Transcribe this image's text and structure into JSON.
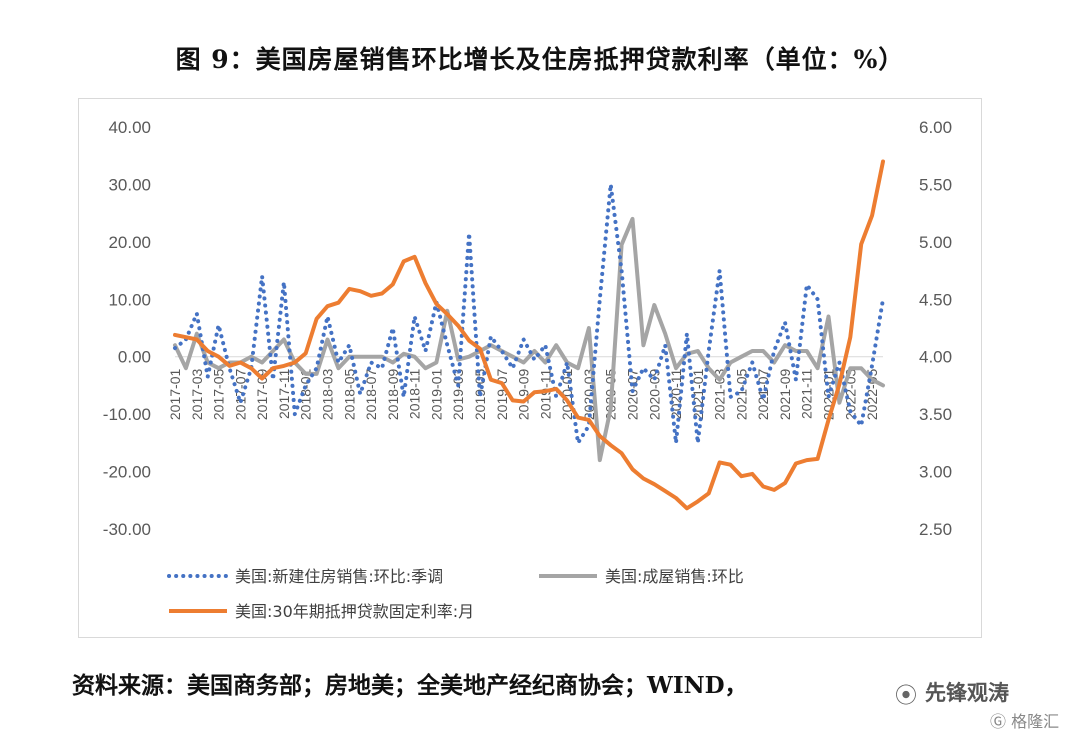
{
  "title": "图 9：美国房屋销售环比增长及住房抵押贷款利率（单位：%）",
  "source": "资料来源：美国商务部；房地美；全美地产经纪商协会；WIND，",
  "watermark": {
    "main": "先锋观涛",
    "secondary": "格隆汇",
    "icon": "wechat-icon",
    "secondary_icon": "gelonghui-logo-icon"
  },
  "chart_data": {
    "type": "line",
    "title": "",
    "xlabel": "",
    "ylabel": "",
    "ylim": [
      -30,
      40
    ],
    "y2lim": [
      2.5,
      6.0
    ],
    "y_ticks": [
      "40.00",
      "30.00",
      "20.00",
      "10.00",
      "0.00",
      "-10.00",
      "-20.00",
      "-30.00"
    ],
    "y2_ticks": [
      "6.00",
      "5.50",
      "5.00",
      "4.50",
      "4.00",
      "3.50",
      "3.00",
      "2.50"
    ],
    "x_tick_labels": [
      "2017-01",
      "2017-03",
      "2017-05",
      "2017-07",
      "2017-09",
      "2017-11",
      "2018-01",
      "2018-03",
      "2018-05",
      "2018-07",
      "2018-09",
      "2018-11",
      "2019-01",
      "2019-03",
      "2019-05",
      "2019-07",
      "2019-09",
      "2019-11",
      "2020-01",
      "2020-03",
      "2020-05",
      "2020-07",
      "2020-09",
      "2020-11",
      "2021-01",
      "2021-03",
      "2021-05",
      "2021-07",
      "2021-09",
      "2021-11",
      "2022-01",
      "2022-03",
      "2022-05"
    ],
    "x": [
      "2017-01",
      "2017-02",
      "2017-03",
      "2017-04",
      "2017-05",
      "2017-06",
      "2017-07",
      "2017-08",
      "2017-09",
      "2017-10",
      "2017-11",
      "2017-12",
      "2018-01",
      "2018-02",
      "2018-03",
      "2018-04",
      "2018-05",
      "2018-06",
      "2018-07",
      "2018-08",
      "2018-09",
      "2018-10",
      "2018-11",
      "2018-12",
      "2019-01",
      "2019-02",
      "2019-03",
      "2019-04",
      "2019-05",
      "2019-06",
      "2019-07",
      "2019-08",
      "2019-09",
      "2019-10",
      "2019-11",
      "2019-12",
      "2020-01",
      "2020-02",
      "2020-03",
      "2020-04",
      "2020-05",
      "2020-06",
      "2020-07",
      "2020-08",
      "2020-09",
      "2020-10",
      "2020-11",
      "2020-12",
      "2021-01",
      "2021-02",
      "2021-03",
      "2021-04",
      "2021-05",
      "2021-06",
      "2021-07",
      "2021-08",
      "2021-09",
      "2021-10",
      "2021-11",
      "2021-12",
      "2022-01",
      "2022-02",
      "2022-03",
      "2022-04",
      "2022-05",
      "2022-06"
    ],
    "series": [
      {
        "name": "美国:新建住房销售:环比:季调",
        "axis": "left",
        "color": "#4472c4",
        "style": "dotted",
        "values": [
          1.5,
          3.0,
          7.5,
          -3.5,
          5.5,
          -2.0,
          -8.0,
          -2.0,
          14.0,
          -4.0,
          13.0,
          -10.0,
          -5.0,
          -2.0,
          7.0,
          -1.0,
          2.0,
          -6.5,
          -1.0,
          -2.0,
          5.0,
          -7.0,
          7.0,
          1.0,
          9.5,
          2.0,
          -5.0,
          21.5,
          -7.0,
          3.5,
          1.0,
          -2.0,
          3.0,
          -0.5,
          2.0,
          -7.0,
          -1.0,
          -15.0,
          -12.0,
          10.0,
          30.0,
          15.0,
          -6.0,
          -2.0,
          -4.0,
          2.0,
          -15.0,
          4.0,
          -15.0,
          1.0,
          15.0,
          -7.0,
          -6.0,
          -1.0,
          -7.5,
          1.0,
          6.0,
          -4.0,
          12.5,
          10.0,
          -7.0,
          -1.0,
          -9.5,
          -12.0,
          -1.5,
          10.0
        ]
      },
      {
        "name": "美国:成屋销售:环比",
        "axis": "left",
        "color": "#a5a5a5",
        "style": "solid",
        "values": [
          2.0,
          -2.0,
          4.0,
          -1.0,
          -2.0,
          -1.0,
          -1.0,
          0.0,
          -1.0,
          1.0,
          3.0,
          -1.0,
          -3.0,
          -3.0,
          3.0,
          -2.0,
          0.0,
          0.0,
          0.0,
          0.0,
          -1.0,
          0.5,
          0.0,
          -2.0,
          -1.0,
          8.0,
          -0.5,
          0.0,
          1.0,
          2.0,
          1.0,
          0.0,
          -1.0,
          1.0,
          -1.0,
          2.0,
          -1.0,
          -2.0,
          5.0,
          -18.0,
          -9.0,
          19.5,
          24.0,
          2.0,
          9.0,
          4.0,
          -2.0,
          0.5,
          1.0,
          -2.0,
          -4.0,
          -1.0,
          0.0,
          1.0,
          1.0,
          -1.0,
          2.0,
          1.0,
          1.0,
          -2.0,
          7.0,
          -8.0,
          -2.0,
          -2.0,
          -4.0,
          -5.0
        ]
      },
      {
        "name": "美国:30年期抵押贷款固定利率:月",
        "axis": "right",
        "color": "#ed7d31",
        "style": "solid",
        "values": [
          4.19,
          4.17,
          4.15,
          4.05,
          4.0,
          3.92,
          3.95,
          3.9,
          3.81,
          3.9,
          3.92,
          3.95,
          4.03,
          4.33,
          4.44,
          4.47,
          4.59,
          4.57,
          4.53,
          4.55,
          4.63,
          4.83,
          4.87,
          4.64,
          4.46,
          4.37,
          4.27,
          4.14,
          4.07,
          3.8,
          3.77,
          3.62,
          3.61,
          3.69,
          3.7,
          3.72,
          3.62,
          3.47,
          3.45,
          3.31,
          3.23,
          3.16,
          3.02,
          2.94,
          2.89,
          2.83,
          2.77,
          2.68,
          2.74,
          2.81,
          3.08,
          3.06,
          2.96,
          2.98,
          2.87,
          2.84,
          2.9,
          3.07,
          3.1,
          3.11,
          3.45,
          3.76,
          4.17,
          4.98,
          5.23,
          5.7
        ]
      }
    ],
    "legend_position": "bottom",
    "grid": false
  }
}
